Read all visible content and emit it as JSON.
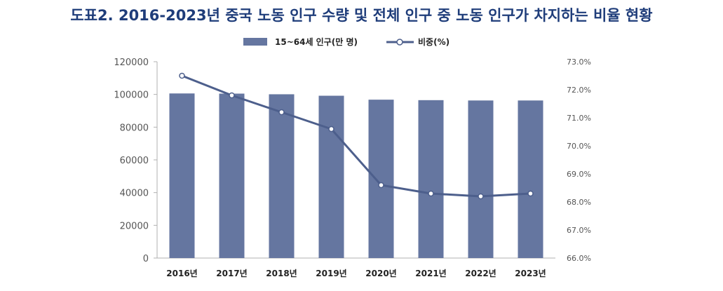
{
  "title": "도표2. 2016-2023년 중국 노동 인구 수량 및 전체 인구 중 노동 인구가 차지하는 비율 현황",
  "chart_data": {
    "type": "bar",
    "title": "도표2. 2016-2023년 중국 노동 인구 수량 및 전체 인구 중 노동 인구가 차지하는 비율 현황",
    "categories": [
      "2016년",
      "2017년",
      "2018년",
      "2019년",
      "2020년",
      "2021년",
      "2022년",
      "2023년"
    ],
    "series": [
      {
        "name": "15~64세 인구(만 명)",
        "type": "bar",
        "axis": "left",
        "color": "#6576a0",
        "values": [
          100600,
          100500,
          100100,
          99200,
          96800,
          96500,
          96300,
          96300
        ]
      },
      {
        "name": "비중(%)",
        "type": "line",
        "axis": "right",
        "color": "#4d5f8c",
        "values": [
          72.5,
          71.8,
          71.2,
          70.6,
          68.6,
          68.3,
          68.2,
          68.3
        ]
      }
    ],
    "left_axis": {
      "ylim": [
        0,
        120000
      ],
      "ticks": [
        "0",
        "20000",
        "40000",
        "60000",
        "80000",
        "100000",
        "120000"
      ]
    },
    "right_axis": {
      "ylim": [
        66.0,
        73.0
      ],
      "ticks": [
        "66.0%",
        "67.0%",
        "68.0%",
        "69.0%",
        "70.0%",
        "71.0%",
        "72.0%",
        "73.0%"
      ]
    },
    "grid": false,
    "legend_position": "top"
  }
}
